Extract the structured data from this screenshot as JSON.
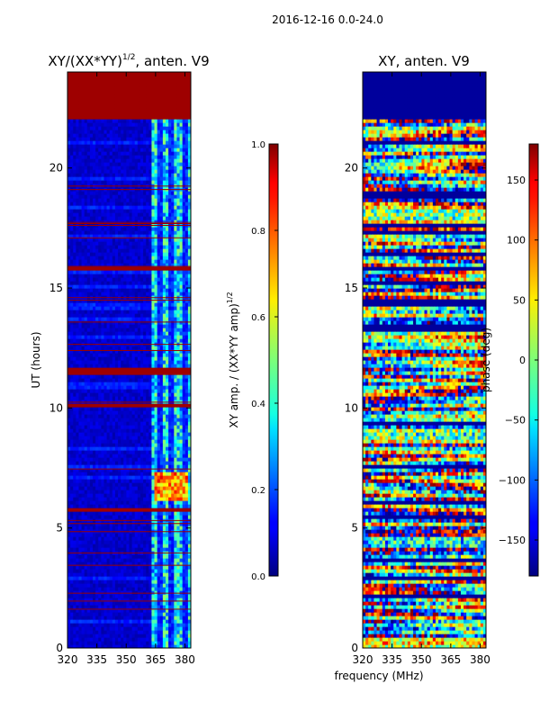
{
  "figure_title": "2016-12-16 0.0-24.0",
  "chart_data": [
    {
      "type": "heatmap",
      "title": "XY/(XX*YY)^1/2, anten. V9",
      "title_main": "XY/(XX*YY)",
      "title_exp": "1/2",
      "title_tail": ", anten. V9",
      "xlabel": "",
      "ylabel": "UT (hours)",
      "xlim": [
        320,
        383
      ],
      "ylim": [
        0,
        24
      ],
      "xticks": [
        320,
        335,
        350,
        365,
        380
      ],
      "yticks": [
        0,
        5,
        10,
        15,
        20
      ],
      "colorbar": {
        "label": "XY amp. / (XX*YY amp)^1/2",
        "label_main": "XY amp. / (XX*YY amp)",
        "label_exp": "1/2",
        "range": [
          0,
          1
        ],
        "ticks": [
          "0.0",
          "0.2",
          "0.4",
          "0.6",
          "0.8",
          "1.0"
        ],
        "tick_values": [
          0,
          0.2,
          0.4,
          0.6,
          0.8,
          1.0
        ]
      },
      "bands": [
        {
          "t0": 22.0,
          "t1": 24.0,
          "kind": "saturated"
        },
        {
          "t0": 15.7,
          "t1": 15.95,
          "kind": "saturated"
        },
        {
          "t0": 11.45,
          "t1": 11.65,
          "kind": "saturated"
        },
        {
          "t0": 10.0,
          "t1": 10.2,
          "kind": "saturated"
        },
        {
          "t0": 5.7,
          "t1": 5.85,
          "kind": "saturated"
        },
        {
          "t0": 3.25,
          "t1": 3.35,
          "kind": "saturated"
        },
        {
          "t0": 6.2,
          "t1": 7.3,
          "kind": "high-amplitude",
          "f0": 364,
          "f1": 381
        }
      ]
    },
    {
      "type": "heatmap",
      "title": "XY, anten. V9",
      "xlabel": "frequency (MHz)",
      "ylabel": "",
      "xlim": [
        320,
        383
      ],
      "ylim": [
        0,
        24
      ],
      "xticks": [
        320,
        335,
        350,
        365,
        380
      ],
      "yticks": [
        0,
        5,
        10,
        15,
        20
      ],
      "colorbar": {
        "label": "phase (deg)",
        "range": [
          -180,
          180
        ],
        "ticks": [
          "150",
          "100",
          "50",
          "0",
          "−50",
          "−100",
          "−150"
        ],
        "tick_values": [
          150,
          100,
          50,
          0,
          -50,
          -100,
          -150
        ]
      },
      "bands": [
        {
          "t0": 22.0,
          "t1": 24.0,
          "kind": "constant",
          "value": -170
        }
      ]
    }
  ]
}
